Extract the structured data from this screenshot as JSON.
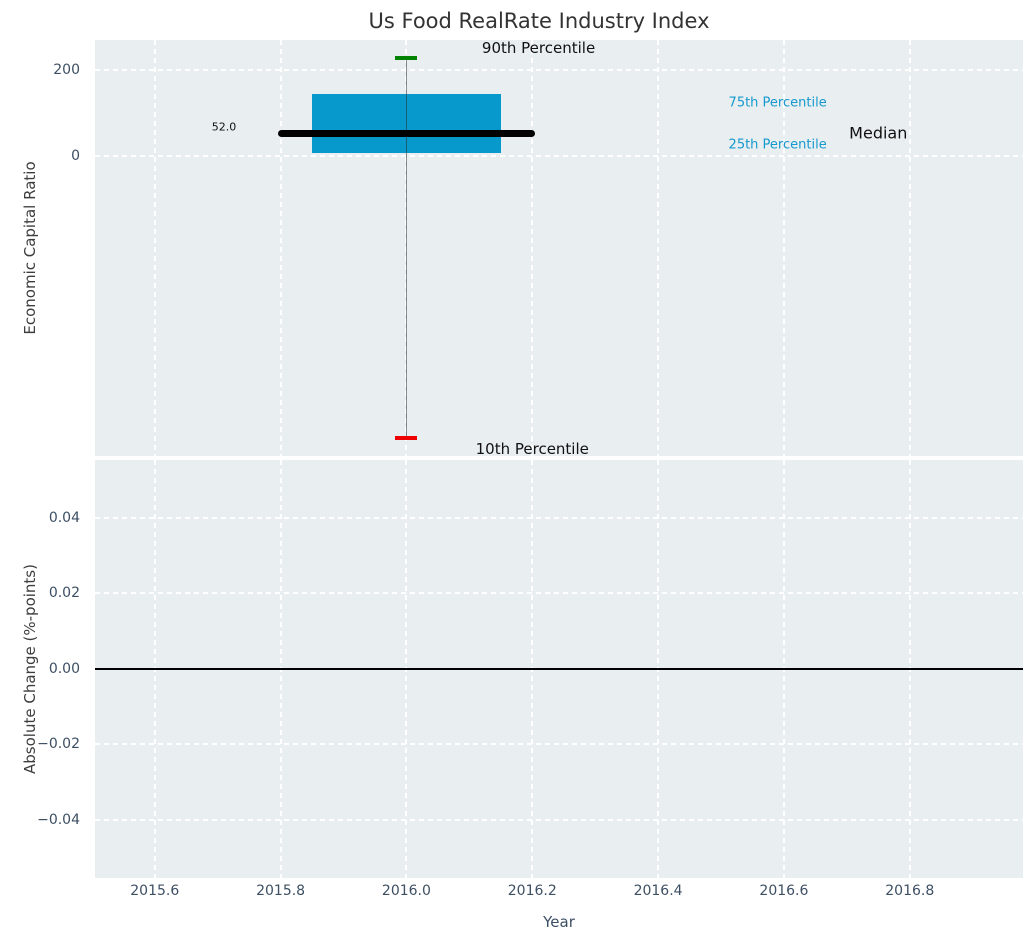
{
  "title": "Us Food RealRate Industry Index",
  "colors": {
    "background": "#ffffff",
    "panel_background": "#e9eef0",
    "grid": "#ffffff",
    "tick_label": "#3d4f63",
    "axis_label": "#3d3d3d",
    "title": "#333333",
    "box_fill": "#0899cc",
    "median_line": "#000000",
    "whisker": "rgba(40,45,50,0.55)",
    "cap_upper": "#028202",
    "cap_lower": "#ee0000",
    "zero_line": "#000000",
    "annotation_black": "#111111",
    "annotation_blue": "#1599cf"
  },
  "chart_data": {
    "type": "box",
    "title": "Us Food RealRate Industry Index",
    "xlabel": "Year",
    "xlim": [
      2015.505,
      2016.98
    ],
    "xticks": [
      {
        "v": 2015.6,
        "label": "2015.6"
      },
      {
        "v": 2015.8,
        "label": "2015.8"
      },
      {
        "v": 2016.0,
        "label": "2016.0"
      },
      {
        "v": 2016.2,
        "label": "2016.2"
      },
      {
        "v": 2016.4,
        "label": "2016.4"
      },
      {
        "v": 2016.6,
        "label": "2016.6"
      },
      {
        "v": 2016.8,
        "label": "2016.8"
      }
    ],
    "panels": [
      {
        "id": "index",
        "ylabel": "Economic Capital Ratio",
        "ylim": [
          -700,
          270
        ],
        "yticks": [
          {
            "v": 200,
            "label": "200"
          },
          {
            "v": 0,
            "label": "0"
          }
        ],
        "grid": true,
        "show_xtick_labels": false,
        "series": [
          {
            "name": "Us Food RealRate Industry Index",
            "x": 2016.0,
            "p90": 228,
            "p75": 143,
            "median": 52.0,
            "p25": 7,
            "p10": -658,
            "box_halfwidth": 0.15,
            "median_halfwidth": 0.204,
            "cap_halfwidth": 0.0175
          }
        ],
        "annotations": [
          {
            "text": "90th Percentile",
            "x": 2016.21,
            "y": 251,
            "color": "#111111",
            "size": 15
          },
          {
            "text": "10th Percentile",
            "x": 2016.2,
            "y": -684,
            "color": "#111111",
            "size": 15
          },
          {
            "text": "75th Percentile",
            "x": 2016.59,
            "y": 124,
            "color": "#1599cf",
            "size": 13
          },
          {
            "text": "25th Percentile",
            "x": 2016.59,
            "y": 26,
            "color": "#1599cf",
            "size": 13
          },
          {
            "text": "Median",
            "x": 2016.75,
            "y": 52,
            "color": "#111111",
            "size": 16
          },
          {
            "text": "52.0",
            "x": 2015.71,
            "y": 67,
            "color": "#111111",
            "size": 11
          }
        ]
      },
      {
        "id": "change",
        "ylabel": "Absolute Change (%-points)",
        "ylim": [
          -0.0555,
          0.0555
        ],
        "yticks": [
          {
            "v": 0.04,
            "label": "0.04"
          },
          {
            "v": 0.02,
            "label": "0.02"
          },
          {
            "v": 0.0,
            "label": "0.00"
          },
          {
            "v": -0.02,
            "label": "−0.02"
          },
          {
            "v": -0.04,
            "label": "−0.04"
          }
        ],
        "grid": true,
        "show_xtick_labels": true,
        "zero_line": 0.0,
        "series": []
      }
    ]
  }
}
